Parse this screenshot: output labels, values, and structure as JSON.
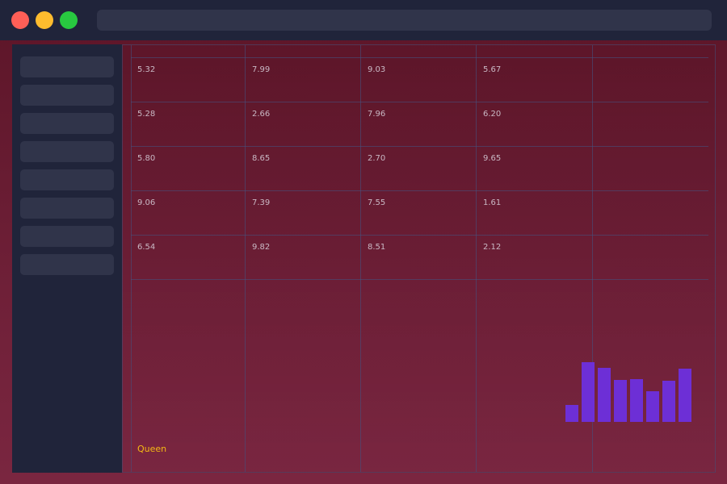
{
  "window": {
    "controls": [
      "close",
      "minimize",
      "maximize"
    ]
  },
  "sidebar": {
    "item_count": 8
  },
  "table": {
    "rows": [
      [
        "5.32",
        "7.99",
        "9.03",
        "5.67"
      ],
      [
        "5.28",
        "2.66",
        "7.96",
        "6.20"
      ],
      [
        "5.80",
        "8.65",
        "2.70",
        "9.65"
      ],
      [
        "9.06",
        "7.39",
        "7.55",
        "1.61"
      ],
      [
        "6.54",
        "9.82",
        "8.51",
        "2.12"
      ]
    ]
  },
  "footer": {
    "label": "Queen"
  },
  "chart_data": {
    "type": "bar",
    "values": [
      20,
      72,
      65,
      51,
      52,
      37,
      50,
      64
    ],
    "color": "#6d2fd6"
  },
  "colors": {
    "background": "#5c1528",
    "chrome": "#20243a",
    "placeholder": "#30344a",
    "accent_text": "#f5b914"
  }
}
